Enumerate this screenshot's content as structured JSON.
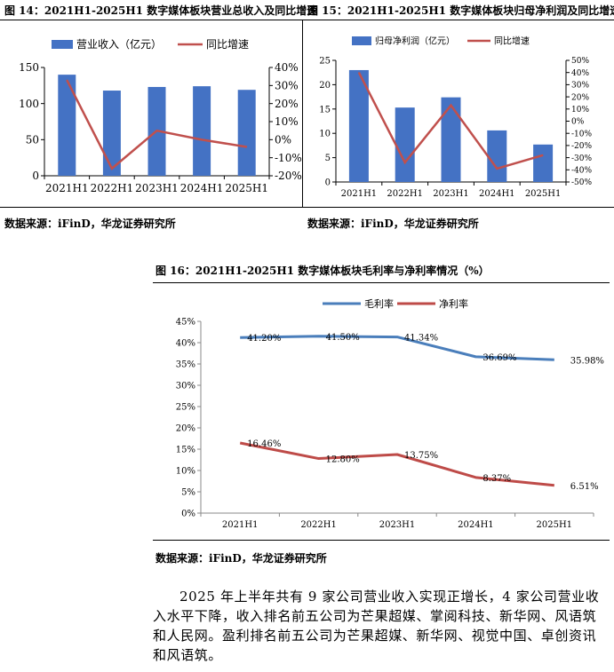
{
  "figures": {
    "fig14": {
      "title": "图 14：2021H1-2025H1 数字媒体板块营业总收入及同比增速",
      "source": "数据来源：iFinD，华龙证券研究所"
    },
    "fig15": {
      "title": "图 15：2021H1-2025H1 数字媒体板块归母净利润及同比增速",
      "source": "数据来源：iFinD，华龙证券研究所"
    },
    "fig16": {
      "title": "图 16：2021H1-2025H1 数字媒体板块毛利率与净利率情况（%）",
      "source": "数据来源：iFinD，华龙证券研究所"
    }
  },
  "colors": {
    "bar": "#4472c4",
    "growth_line": "#c0504d",
    "gross": "#4a7ebb",
    "net": "#be4b48"
  },
  "chart_data": [
    {
      "id": "fig14",
      "type": "bar",
      "categories": [
        "2021H1",
        "2022H1",
        "2023H1",
        "2024H1",
        "2025H1"
      ],
      "series": [
        {
          "name": "营业收入（亿元）",
          "type": "bar",
          "axis": "left",
          "values": [
            140,
            118,
            123,
            124,
            119
          ]
        },
        {
          "name": "同比增速",
          "type": "line",
          "axis": "right",
          "values": [
            33,
            -16,
            5,
            0,
            -4
          ]
        }
      ],
      "y_left": {
        "min": 0,
        "max": 150,
        "ticks": [
          "0",
          "50",
          "100",
          "150"
        ],
        "tick_values": [
          0,
          50,
          100,
          150
        ]
      },
      "y_right": {
        "min": -20,
        "max": 40,
        "ticks": [
          "-20%",
          "-10%",
          "0%",
          "10%",
          "20%",
          "30%",
          "40%"
        ],
        "tick_values": [
          -20,
          -10,
          0,
          10,
          20,
          30,
          40
        ]
      },
      "legend": "top"
    },
    {
      "id": "fig15",
      "type": "bar",
      "categories": [
        "2021H1",
        "2022H1",
        "2023H1",
        "2024H1",
        "2025H1"
      ],
      "series": [
        {
          "name": "归母净利润（亿元）",
          "type": "bar",
          "axis": "left",
          "values": [
            23,
            15.3,
            17.4,
            10.6,
            7.7
          ]
        },
        {
          "name": "同比增速",
          "type": "line",
          "axis": "right",
          "values": [
            40,
            -34,
            13,
            -39,
            -28
          ]
        }
      ],
      "y_left": {
        "min": 0,
        "max": 25,
        "ticks": [
          "0",
          "5",
          "10",
          "15",
          "20",
          "25"
        ],
        "tick_values": [
          0,
          5,
          10,
          15,
          20,
          25
        ]
      },
      "y_right": {
        "min": -50,
        "max": 50,
        "ticks": [
          "-50%",
          "-40%",
          "-30%",
          "-20%",
          "-10%",
          "0%",
          "10%",
          "20%",
          "30%",
          "40%",
          "50%"
        ],
        "tick_values": [
          -50,
          -40,
          -30,
          -20,
          -10,
          0,
          10,
          20,
          30,
          40,
          50
        ]
      },
      "legend": "top"
    },
    {
      "id": "fig16",
      "type": "line",
      "categories": [
        "2021H1",
        "2022H1",
        "2023H1",
        "2024H1",
        "2025H1"
      ],
      "series": [
        {
          "name": "毛利率",
          "values": [
            41.2,
            41.5,
            41.34,
            36.69,
            35.98
          ],
          "labels": [
            "41.20%",
            "41.50%",
            "41.34%",
            "36.69%",
            "35.98%"
          ]
        },
        {
          "name": "净利率",
          "values": [
            16.46,
            12.8,
            13.75,
            8.37,
            6.51
          ],
          "labels": [
            "16.46%",
            "12.80%",
            "13.75%",
            "8.37%",
            "6.51%"
          ]
        }
      ],
      "ylim": [
        0,
        45
      ],
      "y_ticks": [
        "0%",
        "5%",
        "10%",
        "15%",
        "20%",
        "25%",
        "30%",
        "35%",
        "40%",
        "45%"
      ],
      "y_tick_values": [
        0,
        5,
        10,
        15,
        20,
        25,
        30,
        35,
        40,
        45
      ],
      "legend": "top"
    }
  ],
  "paragraph": "2025 年上半年共有 9 家公司营业收入实现正增长，4 家公司营业收入水平下降，收入排名前五公司为芒果超媒、掌阅科技、新华网、风语筑和人民网。盈利排名前五公司为芒果超媒、新华网、视觉中国、卓创资讯和风语筑。"
}
